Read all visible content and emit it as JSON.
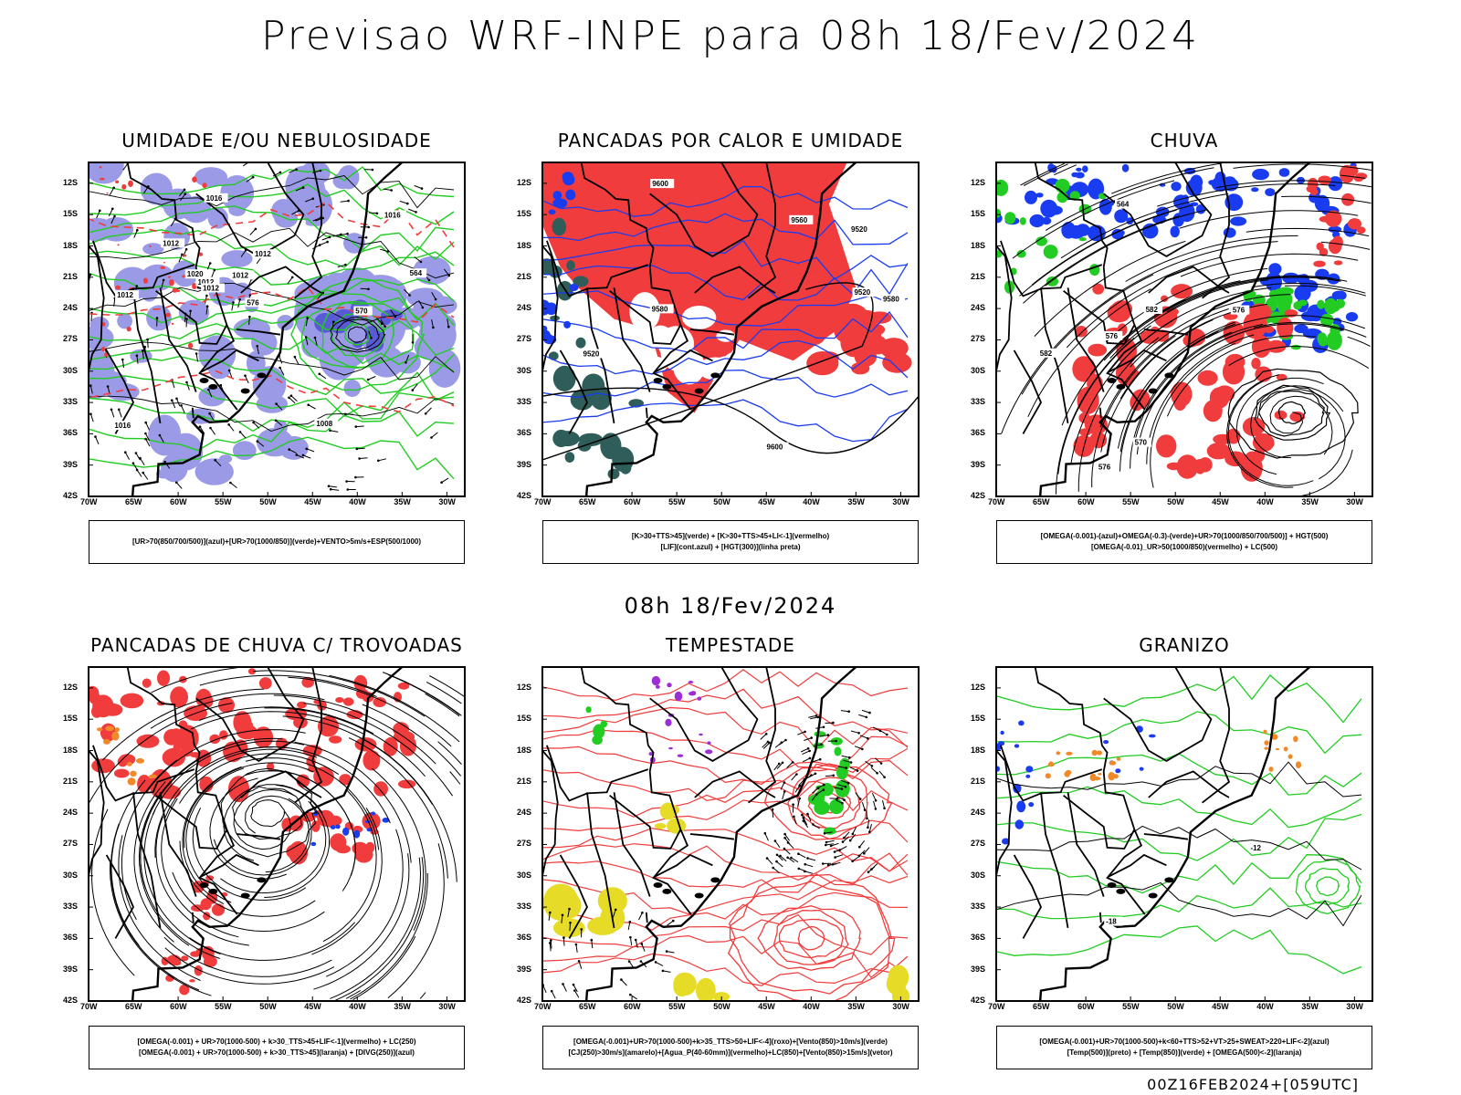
{
  "title": "Previsao WRF-INPE  para 08h 18/Fev/2024",
  "mid_title": "08h 18/Fev/2024",
  "footer": "00Z16FEB2024+[059UTC]",
  "lat_ticks": [
    "12S",
    "15S",
    "18S",
    "21S",
    "24S",
    "27S",
    "30S",
    "33S",
    "36S",
    "39S",
    "42S"
  ],
  "lon_ticks": [
    "70W",
    "65W",
    "60W",
    "55W",
    "50W",
    "45W",
    "40W",
    "35W",
    "30W"
  ],
  "colors": {
    "red": "#f03c3c",
    "green": "#22cc22",
    "blue": "#1a3cf0",
    "lavender": "#9a9ae6",
    "teal": "#2f5e5a",
    "yellow": "#e6dc28",
    "orange": "#f08a28",
    "purple": "#9b2fd4"
  },
  "panels": [
    {
      "id": "umidade",
      "title": "UMIDADE E/OU NEBULOSIDADE",
      "legend": [
        "[UR>70(850/700/500)](azul)+[UR>70(1000/850)](verde)+VENTO>5m/s+ESP(500/1000)"
      ],
      "contour_labels": [
        "1012",
        "1012",
        "1012",
        "1012",
        "1012",
        "1012",
        "1016",
        "1016",
        "1016",
        "1020",
        "1008",
        "576",
        "570",
        "564"
      ]
    },
    {
      "id": "pancadas-calor",
      "title": "PANCADAS POR CALOR E UMIDADE",
      "legend": [
        "[K>30+TTS>45](verde) + [K>30+TTS>45+LI<-1](vermelho)",
        "[LIF](cont.azul) + [HGT(300)](linha preta)"
      ],
      "contour_labels": [
        "9580",
        "9580",
        "9560",
        "9520",
        "9520",
        "9600",
        "9600",
        "9520"
      ]
    },
    {
      "id": "chuva",
      "title": "CHUVA",
      "legend": [
        "[OMEGA(-0.001)-(azul)+OMEGA(-0.3)-(verde)+UR>70(1000/850/700/500)] + HGT(500)",
        "[OMEGA(-0.01)_UR>50(1000/850)(vermelho) + LC(500)"
      ],
      "contour_labels": [
        "576",
        "576",
        "570",
        "564",
        "582",
        "582",
        "576"
      ]
    },
    {
      "id": "pancadas-trovoadas",
      "title": "PANCADAS DE CHUVA C/ TROVOADAS",
      "legend": [
        "[OMEGA(-0.001) + UR>70(1000-500) + k>30_TTS>45+LIF<-1](vermelho) + LC(250)",
        "[OMEGA(-0.001) + UR>70(1000-500) + k>30_TTS>45](laranja) + [DIVG(250)](azul)"
      ],
      "contour_labels": []
    },
    {
      "id": "tempestade",
      "title": "TEMPESTADE",
      "legend": [
        "[OMEGA(-0.001)+UR>70(1000-500)+k>35_TTS>50+LIF<-4](roxo)+[Vento(850)>10m/s](verde)",
        "[CJ(250)>30m/s](amarelo)+[Agua_P(40-60mm)](vermelho)+LC(850)+[Vento(850)>15m/s](vetor)"
      ],
      "contour_labels": []
    },
    {
      "id": "granizo",
      "title": "GRANIZO",
      "legend": [
        "[OMEGA(-0.001)+UR>70(1000-500)+k<60+TTS>52+VT>25+SWEAT>220+LIF<-2](azul)",
        "[Temp(500)](preto) + [Temp(850)](verde) + [OMEGA(500)<-2](laranja)"
      ],
      "contour_labels": [
        "-18",
        "-12"
      ]
    }
  ]
}
